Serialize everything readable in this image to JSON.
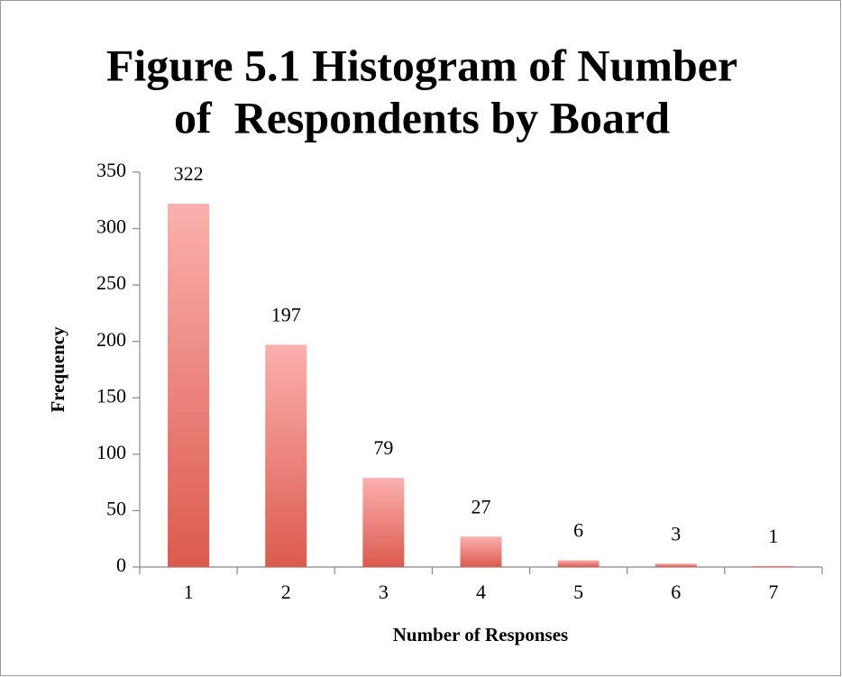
{
  "chart_data": {
    "type": "bar",
    "title": [
      "Figure 5.1 Histogram of Number",
      "of  Respondents by Board"
    ],
    "x_label": "Number of Responses",
    "y_label": "Frequency",
    "categories": [
      "1",
      "2",
      "3",
      "4",
      "5",
      "6",
      "7"
    ],
    "values": [
      322,
      197,
      79,
      27,
      6,
      3,
      1
    ],
    "color": [
      "#fbb0ae",
      "#dc5a4e"
    ],
    "ylim": [
      0,
      350
    ],
    "yticks": [
      0,
      50,
      100,
      150,
      200,
      250,
      300,
      350
    ],
    "grid": false
  }
}
